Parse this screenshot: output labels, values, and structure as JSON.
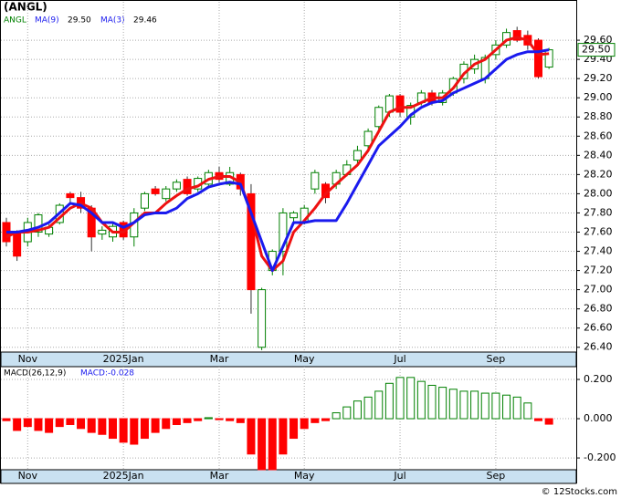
{
  "chart_data": [
    {
      "type": "candlestick",
      "title": "(ANGL)",
      "name": "ANGL",
      "categories": [
        null,
        null,
        "Nov",
        null,
        null,
        null,
        null,
        null,
        null,
        null,
        null,
        "2025Jan",
        null,
        null,
        null,
        null,
        null,
        null,
        null,
        null,
        "Mar",
        null,
        null,
        null,
        null,
        null,
        null,
        null,
        "May",
        null,
        null,
        null,
        null,
        null,
        null,
        null,
        null,
        "Jul",
        null,
        null,
        null,
        null,
        null,
        null,
        null,
        null,
        "Sep",
        null,
        null,
        null,
        null,
        null
      ],
      "open": [
        27.7,
        27.6,
        27.5,
        27.6,
        27.58,
        27.7,
        28.0,
        27.96,
        27.85,
        27.58,
        27.55,
        27.7,
        27.55,
        27.85,
        28.05,
        27.95,
        28.05,
        28.15,
        28.05,
        28.1,
        28.22,
        28.1,
        28.2,
        28.0,
        26.4,
        27.2,
        27.4,
        27.75,
        27.7,
        28.05,
        28.1,
        28.1,
        28.2,
        28.35,
        28.5,
        28.7,
        28.85,
        29.02,
        28.8,
        28.95,
        29.05,
        28.95,
        29.05,
        29.2,
        29.3,
        29.2,
        29.45,
        29.55,
        29.7,
        29.65,
        29.6,
        29.32
      ],
      "high": [
        27.75,
        27.62,
        27.75,
        27.8,
        27.68,
        27.9,
        28.02,
        28.02,
        27.88,
        27.66,
        27.7,
        27.72,
        27.85,
        28.02,
        28.08,
        28.08,
        28.15,
        28.18,
        28.18,
        28.25,
        28.28,
        28.28,
        28.22,
        28.1,
        27.02,
        27.42,
        27.85,
        27.82,
        27.88,
        28.25,
        28.12,
        28.25,
        28.35,
        28.5,
        28.68,
        28.92,
        29.04,
        29.04,
        28.95,
        29.08,
        29.08,
        29.08,
        29.22,
        29.38,
        29.45,
        29.45,
        29.6,
        29.72,
        29.74,
        29.7,
        29.62,
        29.52
      ],
      "low": [
        27.45,
        27.3,
        27.45,
        27.55,
        27.55,
        27.68,
        27.9,
        27.8,
        27.4,
        27.52,
        27.5,
        27.52,
        27.45,
        27.82,
        27.98,
        27.92,
        28.02,
        27.98,
        28.02,
        28.08,
        28.12,
        28.08,
        27.98,
        26.75,
        26.37,
        27.15,
        27.15,
        27.68,
        27.68,
        28.0,
        27.9,
        28.05,
        28.18,
        28.3,
        28.45,
        28.65,
        28.8,
        28.8,
        28.72,
        28.92,
        28.92,
        28.92,
        29.02,
        29.15,
        29.25,
        29.15,
        29.4,
        29.52,
        29.58,
        29.5,
        29.2,
        29.3
      ],
      "close": [
        27.5,
        27.35,
        27.7,
        27.78,
        27.65,
        27.88,
        27.96,
        27.85,
        27.55,
        27.62,
        27.66,
        27.55,
        27.8,
        28.0,
        28.0,
        28.05,
        28.12,
        28.0,
        28.16,
        28.22,
        28.15,
        28.22,
        28.05,
        27.0,
        27.0,
        27.4,
        27.8,
        27.8,
        27.85,
        28.22,
        27.96,
        28.22,
        28.3,
        28.45,
        28.65,
        28.9,
        29.02,
        28.85,
        28.92,
        29.05,
        28.95,
        29.05,
        29.2,
        29.35,
        29.4,
        29.42,
        29.55,
        29.68,
        29.6,
        29.55,
        29.22,
        29.5
      ],
      "up_color": "#008000",
      "down_color": "#ff0000",
      "series": [
        {
          "name": "MA(3)",
          "last_label": "29.46",
          "color": "#ee1111",
          "values": [
            27.55,
            27.6,
            27.6,
            27.62,
            27.65,
            27.75,
            27.85,
            27.9,
            27.85,
            27.7,
            27.6,
            27.6,
            27.7,
            27.8,
            27.8,
            27.9,
            27.98,
            28.05,
            28.08,
            28.15,
            28.18,
            28.18,
            28.12,
            27.8,
            27.35,
            27.2,
            27.3,
            27.6,
            27.72,
            27.85,
            28.0,
            28.1,
            28.2,
            28.3,
            28.45,
            28.65,
            28.85,
            28.9,
            28.9,
            28.95,
            29.0,
            29.0,
            29.1,
            29.25,
            29.35,
            29.4,
            29.5,
            29.6,
            29.63,
            29.6,
            29.45,
            29.46
          ]
        },
        {
          "name": "MA(9)",
          "last_label": "29.50",
          "color": "#1a1aee",
          "values": [
            27.6,
            27.6,
            27.62,
            27.65,
            27.7,
            27.8,
            27.9,
            27.88,
            27.8,
            27.7,
            27.7,
            27.65,
            27.7,
            27.78,
            27.8,
            27.8,
            27.85,
            27.95,
            28.0,
            28.07,
            28.1,
            28.12,
            28.1,
            27.8,
            27.5,
            27.2,
            27.45,
            27.7,
            27.7,
            27.72,
            27.72,
            27.72,
            27.9,
            28.1,
            28.3,
            28.5,
            28.6,
            28.7,
            28.82,
            28.9,
            28.95,
            28.97,
            29.05,
            29.1,
            29.15,
            29.2,
            29.3,
            29.4,
            29.45,
            29.48,
            29.48,
            29.5
          ]
        }
      ],
      "last_price": {
        "value": 29.5,
        "label": "29.50"
      },
      "ylim": [
        26.35,
        30.0
      ],
      "yticks": [
        {
          "value": 26.4,
          "label": "26.40"
        },
        {
          "value": 26.6,
          "label": "26.60"
        },
        {
          "value": 26.8,
          "label": "26.80"
        },
        {
          "value": 27.0,
          "label": "27.00"
        },
        {
          "value": 27.2,
          "label": "27.20"
        },
        {
          "value": 27.4,
          "label": "27.40"
        },
        {
          "value": 27.6,
          "label": "27.60"
        },
        {
          "value": 27.8,
          "label": "27.80"
        },
        {
          "value": 28.0,
          "label": "28.00"
        },
        {
          "value": 28.2,
          "label": "28.20"
        },
        {
          "value": 28.4,
          "label": "28.40"
        },
        {
          "value": 28.6,
          "label": "28.60"
        },
        {
          "value": 28.8,
          "label": "28.80"
        },
        {
          "value": 29.0,
          "label": "29.00"
        },
        {
          "value": 29.2,
          "label": "29.20"
        },
        {
          "value": 29.4,
          "label": "29.40"
        },
        {
          "value": 29.6,
          "label": "29.60"
        }
      ],
      "grid": true
    },
    {
      "type": "bar",
      "name": "MACD(26,12,9)",
      "annotation": "MACD:-0.028",
      "categories": [
        null,
        null,
        "Nov",
        null,
        null,
        null,
        null,
        null,
        null,
        null,
        null,
        "2025Jan",
        null,
        null,
        null,
        null,
        null,
        null,
        null,
        null,
        "Mar",
        null,
        null,
        null,
        null,
        null,
        null,
        null,
        "May",
        null,
        null,
        null,
        null,
        null,
        null,
        null,
        null,
        "Jul",
        null,
        null,
        null,
        null,
        null,
        null,
        null,
        null,
        "Sep",
        null,
        null,
        null,
        null,
        null
      ],
      "values": [
        -0.01,
        -0.06,
        -0.04,
        -0.06,
        -0.07,
        -0.04,
        -0.03,
        -0.05,
        -0.07,
        -0.08,
        -0.1,
        -0.12,
        -0.13,
        -0.1,
        -0.07,
        -0.05,
        -0.03,
        -0.02,
        -0.01,
        0.005,
        -0.005,
        -0.01,
        -0.02,
        -0.18,
        -0.26,
        -0.26,
        -0.18,
        -0.1,
        -0.05,
        -0.02,
        -0.01,
        0.03,
        0.06,
        0.09,
        0.11,
        0.14,
        0.18,
        0.21,
        0.21,
        0.19,
        0.17,
        0.16,
        0.15,
        0.14,
        0.14,
        0.13,
        0.13,
        0.12,
        0.11,
        0.08,
        -0.01,
        -0.028
      ],
      "pos_color": "#008000",
      "neg_color": "#ff0000",
      "ylim": [
        -0.26,
        0.265
      ],
      "yticks": [
        {
          "value": 0.2,
          "label": "0.200"
        },
        {
          "value": 0,
          "label": "0.000"
        },
        {
          "value": -0.2,
          "label": "-0.200"
        }
      ],
      "grid": true
    }
  ],
  "footer": "© 12Stocks.com"
}
